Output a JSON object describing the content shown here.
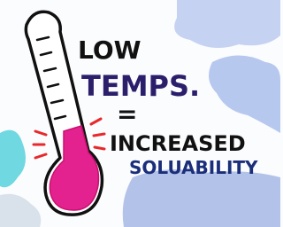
{
  "lines": [
    "LOW",
    "TEMPS.",
    "=",
    "INCREASED",
    "SOLUABILITY"
  ]
}
